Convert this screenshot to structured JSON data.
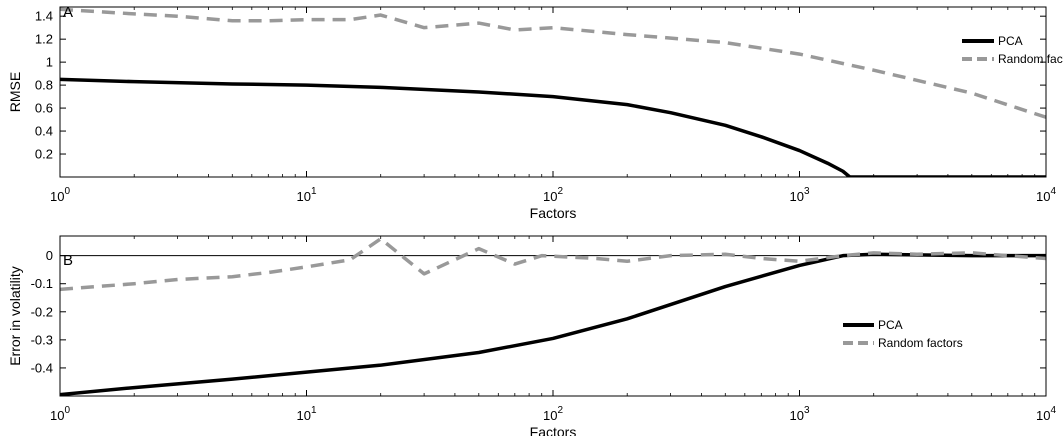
{
  "chart_data": [
    {
      "type": "line",
      "panel_label": "A",
      "xlabel": "Factors",
      "ylabel": "RMSE",
      "xscale": "log",
      "xlim": [
        1,
        10000
      ],
      "ylim": [
        0,
        1.48
      ],
      "xticks": [
        {
          "value": 1,
          "base": "10",
          "exp": "0"
        },
        {
          "value": 10,
          "base": "10",
          "exp": "1"
        },
        {
          "value": 100,
          "base": "10",
          "exp": "2"
        },
        {
          "value": 1000,
          "base": "10",
          "exp": "3"
        },
        {
          "value": 10000,
          "base": "10",
          "exp": "4"
        }
      ],
      "yticks": [
        {
          "value": 0.2,
          "label": "0.2"
        },
        {
          "value": 0.4,
          "label": "0.4"
        },
        {
          "value": 0.6,
          "label": "0.6"
        },
        {
          "value": 0.8,
          "label": "0.8"
        },
        {
          "value": 1.0,
          "label": "1"
        },
        {
          "value": 1.2,
          "label": "1.2"
        },
        {
          "value": 1.4,
          "label": "1.4"
        }
      ],
      "zero_line": false,
      "grid": false,
      "legend_position": "top-right",
      "series": [
        {
          "name": "PCA",
          "color": "#000000",
          "dashed": false,
          "points": [
            [
              1,
              0.85
            ],
            [
              2,
              0.83
            ],
            [
              5,
              0.81
            ],
            [
              10,
              0.8
            ],
            [
              20,
              0.78
            ],
            [
              50,
              0.74
            ],
            [
              100,
              0.7
            ],
            [
              200,
              0.63
            ],
            [
              300,
              0.56
            ],
            [
              500,
              0.45
            ],
            [
              700,
              0.35
            ],
            [
              1000,
              0.23
            ],
            [
              1300,
              0.12
            ],
            [
              1500,
              0.05
            ],
            [
              1600,
              0
            ],
            [
              3000,
              0
            ],
            [
              10000,
              0
            ]
          ]
        },
        {
          "name": "Random factors",
          "color": "#999999",
          "dashed": true,
          "points": [
            [
              1,
              1.46
            ],
            [
              2,
              1.42
            ],
            [
              3,
              1.4
            ],
            [
              5,
              1.36
            ],
            [
              7,
              1.36
            ],
            [
              10,
              1.37
            ],
            [
              15,
              1.37
            ],
            [
              20,
              1.41
            ],
            [
              30,
              1.3
            ],
            [
              50,
              1.34
            ],
            [
              70,
              1.28
            ],
            [
              100,
              1.3
            ],
            [
              200,
              1.24
            ],
            [
              500,
              1.17
            ],
            [
              1000,
              1.07
            ],
            [
              2000,
              0.93
            ],
            [
              5000,
              0.73
            ],
            [
              10000,
              0.52
            ]
          ]
        }
      ]
    },
    {
      "type": "line",
      "panel_label": "B",
      "xlabel": "Factors",
      "ylabel": "Error in volatility",
      "xscale": "log",
      "xlim": [
        1,
        10000
      ],
      "ylim": [
        -0.5,
        0.07
      ],
      "xticks": [
        {
          "value": 1,
          "base": "10",
          "exp": "0"
        },
        {
          "value": 10,
          "base": "10",
          "exp": "1"
        },
        {
          "value": 100,
          "base": "10",
          "exp": "2"
        },
        {
          "value": 1000,
          "base": "10",
          "exp": "3"
        },
        {
          "value": 10000,
          "base": "10",
          "exp": "4"
        }
      ],
      "yticks": [
        {
          "value": -0.4,
          "label": "-0.4"
        },
        {
          "value": -0.3,
          "label": "-0.3"
        },
        {
          "value": -0.2,
          "label": "-0.2"
        },
        {
          "value": -0.1,
          "label": "-0.1"
        },
        {
          "value": 0,
          "label": "0"
        }
      ],
      "zero_line": true,
      "grid": false,
      "legend_position": "center-right",
      "series": [
        {
          "name": "PCA",
          "color": "#000000",
          "dashed": false,
          "points": [
            [
              1,
              -0.495
            ],
            [
              2,
              -0.47
            ],
            [
              5,
              -0.44
            ],
            [
              10,
              -0.415
            ],
            [
              20,
              -0.39
            ],
            [
              50,
              -0.345
            ],
            [
              100,
              -0.295
            ],
            [
              200,
              -0.225
            ],
            [
              500,
              -0.11
            ],
            [
              1000,
              -0.035
            ],
            [
              1500,
              0
            ],
            [
              2000,
              0.005
            ],
            [
              5000,
              0
            ],
            [
              10000,
              0
            ]
          ]
        },
        {
          "name": "Random factors",
          "color": "#999999",
          "dashed": true,
          "points": [
            [
              1,
              -0.12
            ],
            [
              2,
              -0.1
            ],
            [
              3,
              -0.085
            ],
            [
              5,
              -0.075
            ],
            [
              7,
              -0.06
            ],
            [
              10,
              -0.04
            ],
            [
              15,
              -0.015
            ],
            [
              20,
              0.06
            ],
            [
              30,
              -0.065
            ],
            [
              50,
              0.025
            ],
            [
              70,
              -0.03
            ],
            [
              90,
              0
            ],
            [
              150,
              -0.01
            ],
            [
              200,
              -0.02
            ],
            [
              300,
              0
            ],
            [
              500,
              0.005
            ],
            [
              700,
              -0.01
            ],
            [
              1000,
              -0.02
            ],
            [
              1500,
              0
            ],
            [
              2000,
              0.01
            ],
            [
              3000,
              0.005
            ],
            [
              5000,
              0.01
            ],
            [
              7000,
              0
            ],
            [
              10000,
              -0.01
            ]
          ]
        }
      ]
    }
  ]
}
